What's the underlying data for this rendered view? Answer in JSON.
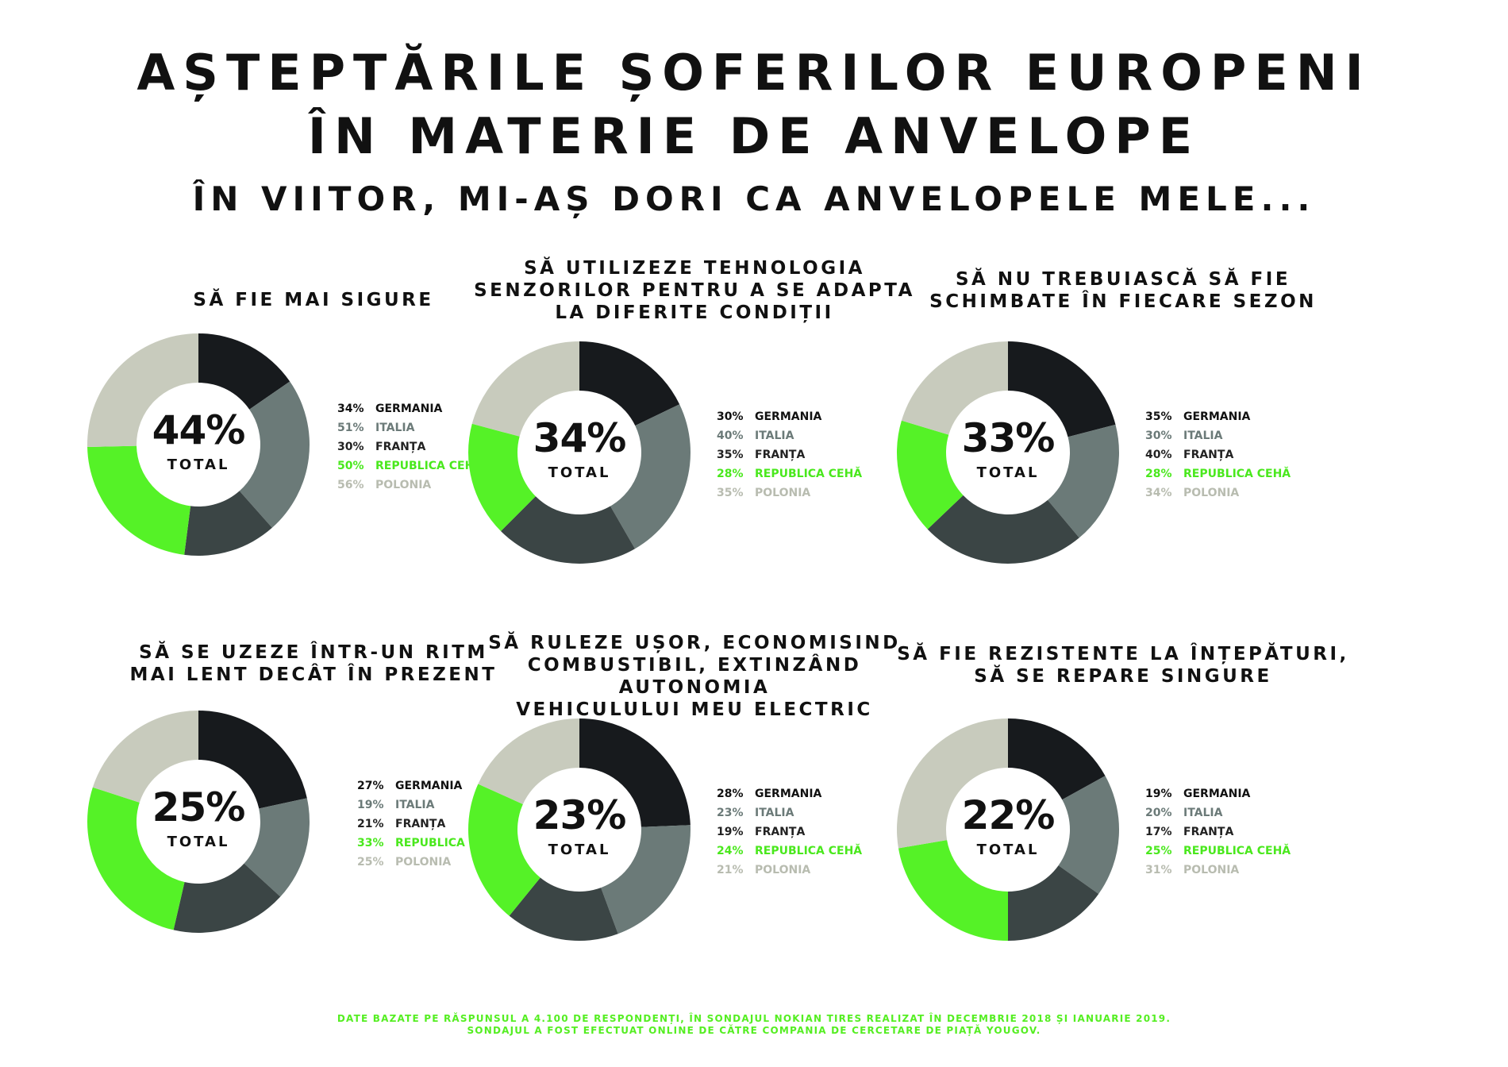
{
  "header": {
    "title_lines": [
      "AȘTEPTĂRILE ȘOFERILOR EUROPENI",
      "ÎN MATERIE DE ANVELOPE"
    ],
    "subtitle": "ÎN VIITOR, MI-AȘ DORI CA ANVELOPELE MELE..."
  },
  "colors": {
    "germania": "#171a1d",
    "italia": "#6b7a78",
    "franta": "#3b4545",
    "republica_ceha": "#55f227",
    "polonia": "#c8cbbd",
    "legend_text": [
      "#111111",
      "#6b7a78",
      "#222222",
      "#4ae81d",
      "#b8bcb0"
    ]
  },
  "center_label": "TOTAL",
  "chart_data": [
    {
      "type": "pie",
      "title_lines": [
        "SĂ FIE MAI SIGURE"
      ],
      "total": "44%",
      "categories": [
        "GERMANIA",
        "ITALIA",
        "FRANȚA",
        "REPUBLICA CEHĂ",
        "POLONIA"
      ],
      "values": [
        34,
        51,
        30,
        50,
        56
      ],
      "labels": [
        "34%",
        "51%",
        "30%",
        "50%",
        "56%"
      ]
    },
    {
      "type": "pie",
      "title_lines": [
        "SĂ UTILIZEZE TEHNOLOGIA",
        "SENZORILOR PENTRU A SE ADAPTA",
        "LA DIFERITE CONDIȚII"
      ],
      "total": "34%",
      "categories": [
        "GERMANIA",
        "ITALIA",
        "FRANȚA",
        "REPUBLICA CEHĂ",
        "POLONIA"
      ],
      "values": [
        30,
        40,
        35,
        28,
        35
      ],
      "labels": [
        "30%",
        "40%",
        "35%",
        "28%",
        "35%"
      ]
    },
    {
      "type": "pie",
      "title_lines": [
        "SĂ NU TREBUIASCĂ SĂ FIE",
        "SCHIMBATE ÎN FIECARE SEZON"
      ],
      "total": "33%",
      "categories": [
        "GERMANIA",
        "ITALIA",
        "FRANȚA",
        "REPUBLICA CEHĂ",
        "POLONIA"
      ],
      "values": [
        35,
        30,
        40,
        28,
        34
      ],
      "labels": [
        "35%",
        "30%",
        "40%",
        "28%",
        "34%"
      ]
    },
    {
      "type": "pie",
      "title_lines": [
        "SĂ SE UZEZE ÎNTR-UN RITM",
        "MAI LENT DECÂT ÎN PREZENT"
      ],
      "total": "25%",
      "categories": [
        "GERMANIA",
        "ITALIA",
        "FRANȚA",
        "REPUBLICA CEHĂ",
        "POLONIA"
      ],
      "values": [
        27,
        19,
        21,
        33,
        25
      ],
      "labels": [
        "27%",
        "19%",
        "21%",
        "33%",
        "25%"
      ]
    },
    {
      "type": "pie",
      "title_lines": [
        "SĂ RULEZE UȘOR, ECONOMISIND",
        "COMBUSTIBIL, EXTINZÂND AUTONOMIA",
        "VEHICULULUI MEU ELECTRIC"
      ],
      "total": "23%",
      "categories": [
        "GERMANIA",
        "ITALIA",
        "FRANȚA",
        "REPUBLICA CEHĂ",
        "POLONIA"
      ],
      "values": [
        28,
        23,
        19,
        24,
        21
      ],
      "labels": [
        "28%",
        "23%",
        "19%",
        "24%",
        "21%"
      ]
    },
    {
      "type": "pie",
      "title_lines": [
        "SĂ FIE REZISTENTE LA ÎNȚEPĂTURI,",
        "SĂ SE REPARE SINGURE"
      ],
      "total": "22%",
      "categories": [
        "GERMANIA",
        "ITALIA",
        "FRANȚA",
        "REPUBLICA CEHĂ",
        "POLONIA"
      ],
      "values": [
        19,
        20,
        17,
        25,
        31
      ],
      "labels": [
        "19%",
        "20%",
        "17%",
        "25%",
        "31%"
      ]
    }
  ],
  "footnote_lines": [
    "DATE BAZATE PE RĂSPUNSUL A 4.100 DE RESPONDENȚI, ÎN SONDAJUL NOKIAN TIRES REALIZAT ÎN DECEMBRIE 2018 ȘI IANUARIE 2019.",
    "SONDAJUL A FOST EFECTUAT ONLINE DE CĂTRE COMPANIA DE CERCETARE DE PIAȚĂ YOUGOV."
  ]
}
